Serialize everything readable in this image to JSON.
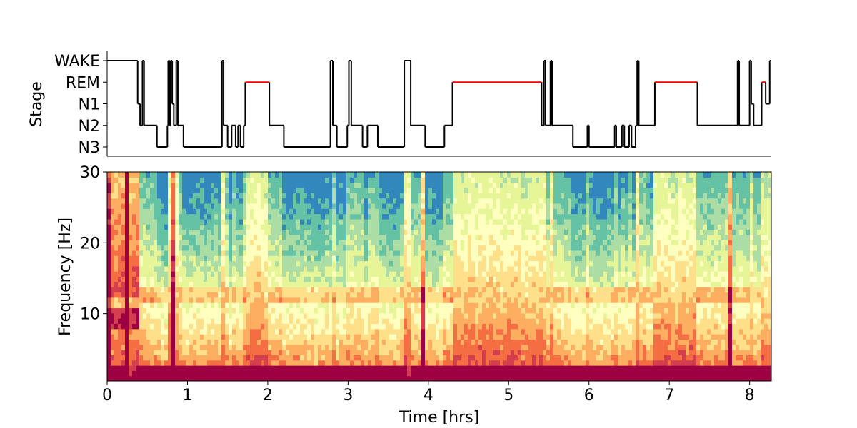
{
  "chart_data": [
    {
      "type": "line",
      "ylabel": "Stage",
      "stage_ticks": [
        "WAKE",
        "REM",
        "N1",
        "N2",
        "N3"
      ],
      "xlim": [
        0,
        8.27
      ],
      "highlight_color": "#ff0000",
      "line_color": "#000000",
      "hypnogram": [
        [
          0.0,
          "WAKE"
        ],
        [
          0.38,
          "N1"
        ],
        [
          0.41,
          "N2"
        ],
        [
          0.44,
          "WAKE"
        ],
        [
          0.46,
          "N2"
        ],
        [
          0.62,
          "N3"
        ],
        [
          0.75,
          "N2"
        ],
        [
          0.76,
          "WAKE"
        ],
        [
          0.78,
          "N2"
        ],
        [
          0.79,
          "WAKE"
        ],
        [
          0.81,
          "N1"
        ],
        [
          0.83,
          "N2"
        ],
        [
          0.86,
          "WAKE"
        ],
        [
          0.88,
          "N2"
        ],
        [
          0.95,
          "N3"
        ],
        [
          1.43,
          "WAKE"
        ],
        [
          1.45,
          "N2"
        ],
        [
          1.5,
          "N3"
        ],
        [
          1.55,
          "N2"
        ],
        [
          1.6,
          "N3"
        ],
        [
          1.63,
          "N2"
        ],
        [
          1.66,
          "N3"
        ],
        [
          1.7,
          "N2"
        ],
        [
          1.72,
          "REM"
        ],
        [
          2.02,
          "N2"
        ],
        [
          2.2,
          "N3"
        ],
        [
          2.78,
          "WAKE"
        ],
        [
          2.81,
          "N2"
        ],
        [
          2.86,
          "N3"
        ],
        [
          2.99,
          "N2"
        ],
        [
          3.01,
          "WAKE"
        ],
        [
          3.04,
          "N2"
        ],
        [
          3.18,
          "N3"
        ],
        [
          3.24,
          "N2"
        ],
        [
          3.37,
          "N3"
        ],
        [
          3.7,
          "WAKE"
        ],
        [
          3.78,
          "N2"
        ],
        [
          3.96,
          "N3"
        ],
        [
          4.2,
          "N2"
        ],
        [
          4.3,
          "REM"
        ],
        [
          5.41,
          "N2"
        ],
        [
          5.44,
          "WAKE"
        ],
        [
          5.46,
          "N2"
        ],
        [
          5.52,
          "WAKE"
        ],
        [
          5.54,
          "N2"
        ],
        [
          5.8,
          "N3"
        ],
        [
          5.98,
          "N2"
        ],
        [
          6.0,
          "N3"
        ],
        [
          6.32,
          "N2"
        ],
        [
          6.34,
          "N3"
        ],
        [
          6.41,
          "N2"
        ],
        [
          6.44,
          "N3"
        ],
        [
          6.5,
          "N2"
        ],
        [
          6.53,
          "N3"
        ],
        [
          6.58,
          "N2"
        ],
        [
          6.6,
          "WAKE"
        ],
        [
          6.62,
          "N2"
        ],
        [
          6.82,
          "REM"
        ],
        [
          7.35,
          "N2"
        ],
        [
          7.85,
          "WAKE"
        ],
        [
          7.87,
          "N2"
        ],
        [
          8.0,
          "WAKE"
        ],
        [
          8.02,
          "N1"
        ],
        [
          8.05,
          "N2"
        ],
        [
          8.15,
          "REM"
        ],
        [
          8.2,
          "N1"
        ],
        [
          8.25,
          "WAKE"
        ]
      ]
    },
    {
      "type": "heatmap",
      "xlabel": "Time [hrs]",
      "ylabel": "Frequency [Hz]",
      "xlim": [
        0,
        8.27
      ],
      "ylim": [
        0.5,
        30
      ],
      "xticks": [
        "0",
        "1",
        "2",
        "3",
        "4",
        "5",
        "6",
        "7",
        "8"
      ],
      "yticks": [
        "10",
        "20",
        "30"
      ],
      "colormap": "Spectral_r",
      "colormap_colors": [
        "#3288bd",
        "#66c2a5",
        "#abdda4",
        "#e6f598",
        "#ffffbf",
        "#fee08b",
        "#fdae61",
        "#f46d43",
        "#d53e4f",
        "#9e0142"
      ],
      "spindle_band_hz": [
        11.5,
        13.5
      ],
      "alpha_band_hz": [
        8,
        10.5
      ]
    }
  ]
}
